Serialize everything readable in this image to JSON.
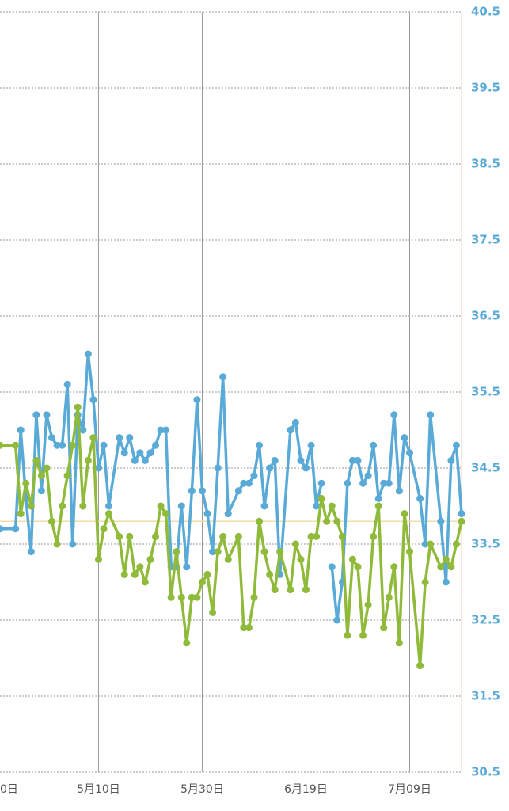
{
  "chart_data": {
    "type": "line",
    "x": [
      1,
      4,
      5,
      6,
      7,
      8,
      9,
      10,
      11,
      12,
      13,
      14,
      15,
      16,
      17,
      18,
      19,
      20,
      21,
      22,
      24,
      25,
      26,
      27,
      28,
      29,
      30,
      31,
      32,
      33,
      34,
      35,
      36,
      37,
      38,
      39,
      40,
      41,
      42,
      43,
      44,
      45,
      47,
      48,
      49,
      50,
      51,
      52,
      53,
      54,
      55,
      57,
      58,
      59,
      60,
      61,
      62,
      63,
      64,
      65,
      66,
      67,
      68,
      69,
      70,
      71,
      72,
      73,
      74,
      75,
      76,
      77,
      78,
      79,
      80,
      82,
      83,
      84,
      86,
      87,
      88,
      89,
      90
    ],
    "series": [
      {
        "color": "#5aaad8",
        "values": [
          33.7,
          33.7,
          35.0,
          34.1,
          33.4,
          35.2,
          34.2,
          35.2,
          34.9,
          34.8,
          34.8,
          35.6,
          33.5,
          35.2,
          35.0,
          36.0,
          35.4,
          34.5,
          34.8,
          34.0,
          34.9,
          34.7,
          34.9,
          34.6,
          34.7,
          34.6,
          34.7,
          34.8,
          35.0,
          35.0,
          33.2,
          33.2,
          34.0,
          33.2,
          34.2,
          35.4,
          34.2,
          33.9,
          33.4,
          34.5,
          35.7,
          33.9,
          34.2,
          34.3,
          34.3,
          34.4,
          34.8,
          34.0,
          34.5,
          34.6,
          33.1,
          35.0,
          35.1,
          34.6,
          34.5,
          34.8,
          34.0,
          34.3,
          null,
          33.2,
          32.5,
          33.0,
          34.3,
          34.6,
          34.6,
          34.3,
          34.4,
          34.8,
          34.1,
          34.3,
          34.3,
          35.2,
          34.2,
          34.9,
          34.7,
          34.1,
          33.5,
          35.2,
          33.8,
          33.0,
          34.6,
          34.8,
          33.9
        ]
      },
      {
        "color": "#8fba3a",
        "values": [
          34.8,
          34.8,
          33.9,
          34.3,
          34.0,
          34.6,
          34.4,
          34.5,
          33.8,
          33.5,
          34.0,
          34.4,
          34.8,
          35.3,
          34.0,
          34.6,
          34.9,
          33.3,
          33.7,
          33.9,
          33.6,
          33.1,
          33.6,
          33.1,
          33.2,
          33.0,
          33.3,
          33.6,
          34.0,
          33.9,
          32.8,
          33.4,
          32.8,
          32.2,
          32.8,
          32.8,
          33.0,
          33.1,
          32.6,
          33.4,
          33.6,
          33.3,
          33.6,
          32.4,
          32.4,
          32.8,
          33.8,
          33.4,
          33.1,
          32.9,
          33.4,
          32.9,
          33.5,
          33.3,
          32.9,
          33.6,
          33.6,
          34.1,
          33.8,
          34.0,
          33.8,
          33.6,
          32.3,
          33.3,
          33.2,
          32.3,
          32.7,
          33.6,
          34.0,
          32.4,
          32.8,
          33.2,
          32.2,
          33.9,
          33.4,
          31.9,
          33.0,
          33.5,
          33.2,
          33.3,
          33.2,
          33.5,
          33.8
        ]
      }
    ],
    "reference_line": 33.8,
    "reference_color": "#f3dca6",
    "xlim": [
      1,
      90
    ],
    "xticks": [
      {
        "value": 0,
        "label": "0日"
      },
      {
        "value": 20,
        "label": "5月10日"
      },
      {
        "value": 40,
        "label": "5月30日"
      },
      {
        "value": 60,
        "label": "6月19日"
      },
      {
        "value": 80,
        "label": "7月09日"
      }
    ],
    "ylim": [
      30.5,
      40.5
    ],
    "yticks": [
      30.5,
      31.5,
      32.5,
      33.5,
      34.5,
      35.5,
      36.5,
      37.5,
      38.5,
      39.5,
      40.5
    ],
    "grid": true
  }
}
